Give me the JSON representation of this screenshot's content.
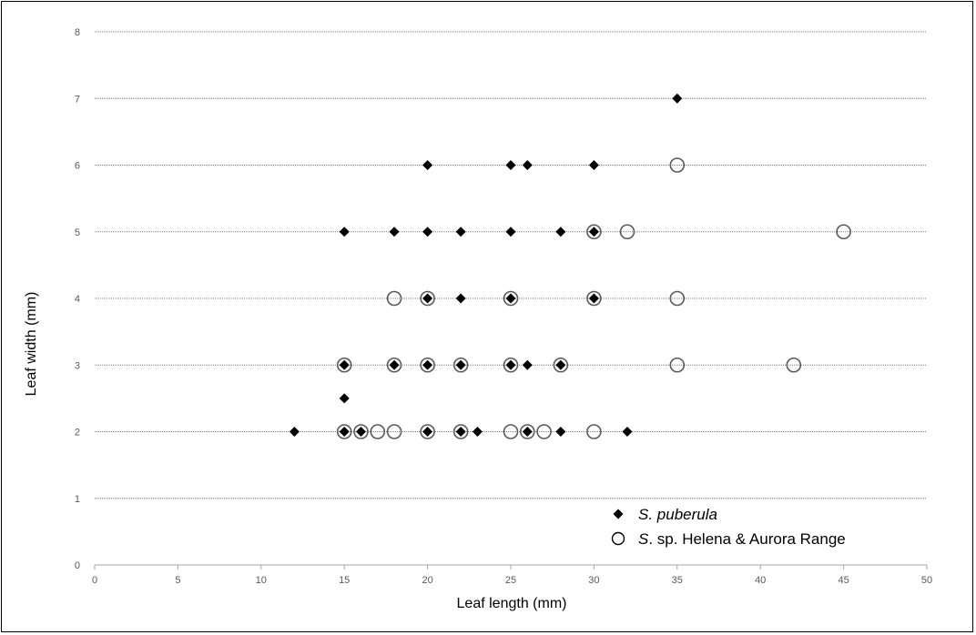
{
  "chart_data": {
    "type": "scatter",
    "xlabel": "Leaf length (mm)",
    "ylabel": "Leaf width (mm)",
    "xlim": [
      0,
      50
    ],
    "ylim": [
      0,
      8
    ],
    "x_ticks": [
      0,
      5,
      10,
      15,
      20,
      25,
      30,
      35,
      40,
      45,
      50
    ],
    "y_ticks": [
      0,
      1,
      2,
      3,
      4,
      5,
      6,
      7,
      8
    ],
    "grid": "horizontal dotted",
    "legend_position": "bottom-right",
    "series": [
      {
        "name_italic": "S. puberula",
        "name_rest": "",
        "marker": "filled-diamond",
        "color": "#000000",
        "points": [
          [
            12,
            2
          ],
          [
            15,
            2
          ],
          [
            16,
            2
          ],
          [
            20,
            2
          ],
          [
            22,
            2
          ],
          [
            23,
            2
          ],
          [
            26,
            2
          ],
          [
            28,
            2
          ],
          [
            32,
            2
          ],
          [
            15,
            2.5
          ],
          [
            15,
            3
          ],
          [
            18,
            3
          ],
          [
            20,
            3
          ],
          [
            22,
            3
          ],
          [
            25,
            3
          ],
          [
            26,
            3
          ],
          [
            28,
            3
          ],
          [
            20,
            4
          ],
          [
            22,
            4
          ],
          [
            25,
            4
          ],
          [
            30,
            4
          ],
          [
            15,
            5
          ],
          [
            18,
            5
          ],
          [
            20,
            5
          ],
          [
            22,
            5
          ],
          [
            25,
            5
          ],
          [
            28,
            5
          ],
          [
            30,
            5
          ],
          [
            20,
            6
          ],
          [
            25,
            6
          ],
          [
            26,
            6
          ],
          [
            30,
            6
          ],
          [
            35,
            7
          ]
        ]
      },
      {
        "name_italic": "S",
        "name_rest": ". sp. Helena & Aurora Range",
        "marker": "open-circle",
        "color": "#595959",
        "points": [
          [
            15,
            2
          ],
          [
            16,
            2
          ],
          [
            17,
            2
          ],
          [
            18,
            2
          ],
          [
            20,
            2
          ],
          [
            22,
            2
          ],
          [
            25,
            2
          ],
          [
            26,
            2
          ],
          [
            27,
            2
          ],
          [
            30,
            2
          ],
          [
            15,
            3
          ],
          [
            18,
            3
          ],
          [
            20,
            3
          ],
          [
            22,
            3
          ],
          [
            25,
            3
          ],
          [
            28,
            3
          ],
          [
            35,
            3
          ],
          [
            42,
            3
          ],
          [
            18,
            4
          ],
          [
            20,
            4
          ],
          [
            25,
            4
          ],
          [
            30,
            4
          ],
          [
            35,
            4
          ],
          [
            30,
            5
          ],
          [
            32,
            5
          ],
          [
            45,
            5
          ],
          [
            35,
            6
          ]
        ]
      }
    ]
  }
}
